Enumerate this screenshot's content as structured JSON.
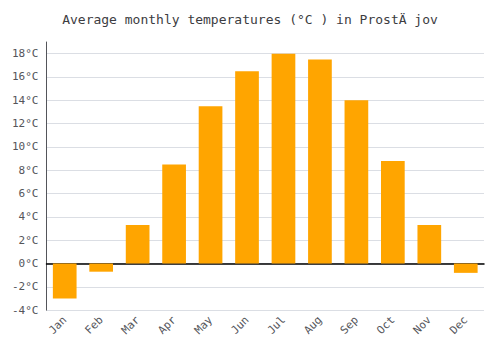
{
  "chart_data": {
    "type": "bar",
    "title": "Average monthly temperatures (°C ) in ProstÄ jov",
    "categories": [
      "Jan",
      "Feb",
      "Mar",
      "Apr",
      "May",
      "Jun",
      "Jul",
      "Aug",
      "Sep",
      "Oct",
      "Nov",
      "Dec"
    ],
    "values": [
      -3.0,
      -0.7,
      3.3,
      8.5,
      13.5,
      16.5,
      18.0,
      17.5,
      14.0,
      8.8,
      3.3,
      -0.8
    ],
    "color": "#FFA500",
    "ylim": [
      -4,
      19
    ],
    "yticks": [
      {
        "value": -4,
        "label": "-4°C"
      },
      {
        "value": -2,
        "label": "-2°C"
      },
      {
        "value": 0,
        "label": "0°C"
      },
      {
        "value": 2,
        "label": "2°C"
      },
      {
        "value": 4,
        "label": "4°C"
      },
      {
        "value": 6,
        "label": "6°C"
      },
      {
        "value": 8,
        "label": "8°C"
      },
      {
        "value": 10,
        "label": "10°C"
      },
      {
        "value": 12,
        "label": "12°C"
      },
      {
        "value": 14,
        "label": "14°C"
      },
      {
        "value": 16,
        "label": "16°C"
      },
      {
        "value": 18,
        "label": "18°C"
      }
    ],
    "grid": true
  }
}
